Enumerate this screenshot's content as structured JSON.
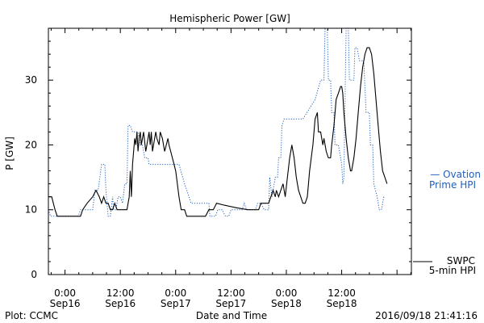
{
  "chart_data": {
    "type": "line",
    "title": "Hemispheric Power [GW]",
    "ylabel": "P [GW]",
    "xlabel": "Date and Time",
    "ylim": [
      0,
      38
    ],
    "xlim": [
      -0.15,
      3.13
    ],
    "x_units": "days since 2016-09-16 00:00",
    "y_ticks": [
      0,
      10,
      20,
      30
    ],
    "x_ticks": [
      {
        "value": 0.0,
        "time": "0:00",
        "date": "Sep16"
      },
      {
        "value": 0.5,
        "time": "12:00",
        "date": "Sep16"
      },
      {
        "value": 1.0,
        "time": "0:00",
        "date": "Sep17"
      },
      {
        "value": 1.5,
        "time": "12:00",
        "date": "Sep17"
      },
      {
        "value": 2.0,
        "time": "0:00",
        "date": "Sep18"
      },
      {
        "value": 2.5,
        "time": "12:00",
        "date": "Sep18"
      }
    ],
    "grid": false,
    "series": [
      {
        "name": "SWPC 5-min HPI",
        "color": "#000000",
        "style": "solid",
        "points": [
          [
            -0.15,
            12
          ],
          [
            -0.12,
            12
          ],
          [
            -0.09,
            10
          ],
          [
            -0.07,
            9
          ],
          [
            0.04,
            9
          ],
          [
            0.14,
            9
          ],
          [
            0.16,
            10
          ],
          [
            0.2,
            11
          ],
          [
            0.25,
            12
          ],
          [
            0.28,
            13
          ],
          [
            0.31,
            12
          ],
          [
            0.33,
            11
          ],
          [
            0.35,
            12
          ],
          [
            0.37,
            11
          ],
          [
            0.39,
            11
          ],
          [
            0.41,
            10
          ],
          [
            0.43,
            10
          ],
          [
            0.45,
            11
          ],
          [
            0.47,
            10
          ],
          [
            0.5,
            10
          ],
          [
            0.52,
            10
          ],
          [
            0.54,
            10
          ],
          [
            0.56,
            10
          ],
          [
            0.58,
            12
          ],
          [
            0.59,
            16
          ],
          [
            0.6,
            12
          ],
          [
            0.61,
            17
          ],
          [
            0.63,
            21
          ],
          [
            0.64,
            20
          ],
          [
            0.65,
            22
          ],
          [
            0.66,
            19
          ],
          [
            0.67,
            21
          ],
          [
            0.68,
            22
          ],
          [
            0.69,
            20
          ],
          [
            0.7,
            21
          ],
          [
            0.71,
            22
          ],
          [
            0.73,
            19
          ],
          [
            0.75,
            21
          ],
          [
            0.76,
            22
          ],
          [
            0.77,
            20
          ],
          [
            0.78,
            22
          ],
          [
            0.79,
            19
          ],
          [
            0.81,
            21
          ],
          [
            0.82,
            22
          ],
          [
            0.83,
            21
          ],
          [
            0.85,
            20
          ],
          [
            0.86,
            22
          ],
          [
            0.88,
            21
          ],
          [
            0.9,
            19
          ],
          [
            0.93,
            21
          ],
          [
            0.94,
            20
          ],
          [
            0.97,
            18
          ],
          [
            1.0,
            16
          ],
          [
            1.03,
            12
          ],
          [
            1.05,
            10
          ],
          [
            1.08,
            10
          ],
          [
            1.1,
            9
          ],
          [
            1.2,
            9
          ],
          [
            1.27,
            9
          ],
          [
            1.3,
            10
          ],
          [
            1.32,
            10
          ],
          [
            1.34,
            10
          ],
          [
            1.37,
            11
          ],
          [
            1.44,
            10.7
          ],
          [
            1.55,
            10.3
          ],
          [
            1.65,
            10
          ],
          [
            1.72,
            10
          ],
          [
            1.75,
            10
          ],
          [
            1.77,
            11
          ],
          [
            1.8,
            11
          ],
          [
            1.84,
            11
          ],
          [
            1.86,
            12
          ],
          [
            1.88,
            13
          ],
          [
            1.9,
            12
          ],
          [
            1.91,
            13
          ],
          [
            1.93,
            12
          ],
          [
            1.95,
            13
          ],
          [
            1.97,
            14
          ],
          [
            1.99,
            12
          ],
          [
            2.01,
            15
          ],
          [
            2.03,
            18
          ],
          [
            2.05,
            20
          ],
          [
            2.07,
            18
          ],
          [
            2.09,
            15
          ],
          [
            2.11,
            13
          ],
          [
            2.13,
            12
          ],
          [
            2.15,
            11
          ],
          [
            2.17,
            11
          ],
          [
            2.19,
            12
          ],
          [
            2.21,
            16
          ],
          [
            2.24,
            20
          ],
          [
            2.26,
            24
          ],
          [
            2.28,
            25
          ],
          [
            2.29,
            22
          ],
          [
            2.31,
            22
          ],
          [
            2.33,
            20
          ],
          [
            2.34,
            21
          ],
          [
            2.36,
            19
          ],
          [
            2.38,
            18
          ],
          [
            2.4,
            18
          ],
          [
            2.41,
            20
          ],
          [
            2.43,
            23
          ],
          [
            2.45,
            27
          ],
          [
            2.47,
            28
          ],
          [
            2.49,
            29
          ],
          [
            2.5,
            29
          ],
          [
            2.51,
            28
          ],
          [
            2.52,
            25
          ],
          [
            2.54,
            21
          ],
          [
            2.56,
            18
          ],
          [
            2.58,
            16
          ],
          [
            2.59,
            16
          ],
          [
            2.61,
            18
          ],
          [
            2.63,
            21
          ],
          [
            2.65,
            25
          ],
          [
            2.67,
            29
          ],
          [
            2.69,
            32
          ],
          [
            2.71,
            34
          ],
          [
            2.73,
            35
          ],
          [
            2.75,
            35
          ],
          [
            2.77,
            34
          ],
          [
            2.79,
            31
          ],
          [
            2.81,
            27
          ],
          [
            2.83,
            23
          ],
          [
            2.85,
            19
          ],
          [
            2.87,
            16
          ],
          [
            2.89,
            15
          ],
          [
            2.91,
            14
          ]
        ]
      },
      {
        "name": "Ovation Prime HPI",
        "color": "#1f5fbf",
        "style": "dotted",
        "points": [
          [
            -0.15,
            10
          ],
          [
            -0.13,
            9
          ],
          [
            0.12,
            9
          ],
          [
            0.14,
            10
          ],
          [
            0.25,
            10
          ],
          [
            0.27,
            13
          ],
          [
            0.3,
            13
          ],
          [
            0.33,
            17
          ],
          [
            0.36,
            17
          ],
          [
            0.37,
            13
          ],
          [
            0.39,
            9
          ],
          [
            0.41,
            9
          ],
          [
            0.43,
            12
          ],
          [
            0.44,
            10
          ],
          [
            0.46,
            10
          ],
          [
            0.48,
            12
          ],
          [
            0.5,
            12
          ],
          [
            0.52,
            11
          ],
          [
            0.54,
            14
          ],
          [
            0.56,
            14
          ],
          [
            0.57,
            23
          ],
          [
            0.59,
            23
          ],
          [
            0.61,
            22
          ],
          [
            0.66,
            22
          ],
          [
            0.68,
            20
          ],
          [
            0.7,
            20
          ],
          [
            0.72,
            18
          ],
          [
            0.75,
            18
          ],
          [
            0.76,
            17
          ],
          [
            1.03,
            17
          ],
          [
            1.08,
            14
          ],
          [
            1.14,
            11
          ],
          [
            1.3,
            11
          ],
          [
            1.31,
            9
          ],
          [
            1.36,
            9
          ],
          [
            1.38,
            10
          ],
          [
            1.42,
            10
          ],
          [
            1.45,
            9
          ],
          [
            1.48,
            9
          ],
          [
            1.5,
            10
          ],
          [
            1.6,
            10
          ],
          [
            1.62,
            11
          ],
          [
            1.64,
            10
          ],
          [
            1.72,
            10
          ],
          [
            1.74,
            11
          ],
          [
            1.77,
            11
          ],
          [
            1.8,
            10
          ],
          [
            1.84,
            10
          ],
          [
            1.85,
            15
          ],
          [
            1.87,
            12
          ],
          [
            1.89,
            14
          ],
          [
            1.9,
            15
          ],
          [
            1.92,
            15
          ],
          [
            1.93,
            18
          ],
          [
            1.95,
            18
          ],
          [
            1.96,
            23
          ],
          [
            1.98,
            24
          ],
          [
            2.15,
            24
          ],
          [
            2.26,
            27
          ],
          [
            2.31,
            30
          ],
          [
            2.34,
            30
          ],
          [
            2.35,
            38
          ],
          [
            2.37,
            38
          ],
          [
            2.38,
            30
          ],
          [
            2.4,
            30
          ],
          [
            2.41,
            25
          ],
          [
            2.43,
            25
          ],
          [
            2.44,
            20
          ],
          [
            2.47,
            20
          ],
          [
            2.5,
            17
          ],
          [
            2.51,
            14
          ],
          [
            2.52,
            15
          ],
          [
            2.54,
            38
          ],
          [
            2.56,
            38
          ],
          [
            2.57,
            30
          ],
          [
            2.61,
            30
          ],
          [
            2.62,
            35
          ],
          [
            2.64,
            35
          ],
          [
            2.66,
            33
          ],
          [
            2.7,
            33
          ],
          [
            2.72,
            25
          ],
          [
            2.75,
            25
          ],
          [
            2.76,
            20
          ],
          [
            2.78,
            20
          ],
          [
            2.79,
            14
          ],
          [
            2.82,
            12
          ],
          [
            2.84,
            10
          ],
          [
            2.86,
            10
          ],
          [
            2.88,
            12
          ]
        ]
      }
    ]
  },
  "legend": {
    "ovation_line1": "— Ovation",
    "ovation_line2": "Prime HPI",
    "swpc_line1": "SWPC",
    "swpc_line2": "5-min HPI"
  },
  "footer": {
    "left": "Plot: CCMC",
    "timestamp": "2016/09/18 21:41:16"
  }
}
